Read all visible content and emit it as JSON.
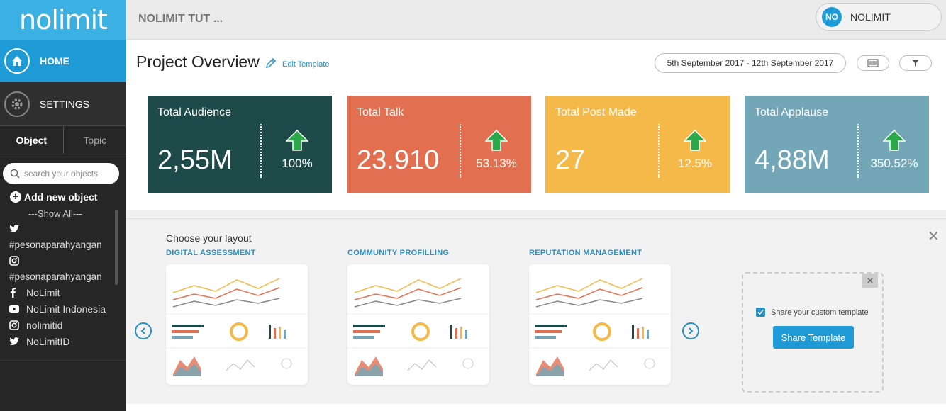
{
  "sidebar": {
    "logo": "nolimit",
    "home_label": "HOME",
    "settings_label": "SETTINGS",
    "tabs": [
      {
        "label": "Object"
      },
      {
        "label": "Topic"
      }
    ],
    "search_placeholder": "search your objects",
    "add_object_label": "Add new object",
    "show_all_label": "---Show All---",
    "objects": [
      {
        "icon": "twitter-icon",
        "label": "#pesonaparahyangan"
      },
      {
        "icon": "instagram-icon",
        "label": "#pesonaparahyangan"
      },
      {
        "icon": "facebook-icon",
        "label": "NoLimit"
      },
      {
        "icon": "youtube-icon",
        "label": "NoLimit Indonesia"
      },
      {
        "icon": "instagram-icon",
        "label": "nolimitid"
      },
      {
        "icon": "twitter-icon",
        "label": "NoLimitID"
      }
    ]
  },
  "topbar": {
    "project_name": "NOLIMIT TUT ...",
    "user_initials": "NO",
    "user_name": "NOLIMIT"
  },
  "header": {
    "title": "Project Overview",
    "edit_template_label": "Edit Template",
    "date_range": "5th September 2017 - 12th September 2017"
  },
  "stats": [
    {
      "title": "Total Audience",
      "value": "2,55M",
      "change": "100%",
      "color": "#1f4a4a"
    },
    {
      "title": "Total Talk",
      "value": "23.910",
      "change": "53.13%",
      "color": "#e27050"
    },
    {
      "title": "Total Post Made",
      "value": "27",
      "change": "12.5%",
      "color": "#f5b94a"
    },
    {
      "title": "Total Applause",
      "value": "4,88M",
      "change": "350.52%",
      "color": "#73a7b8"
    }
  ],
  "layout": {
    "choose_label": "Choose your layout",
    "templates": [
      {
        "title": "DIGITAL ASSESSMENT"
      },
      {
        "title": "COMMUNITY PROFILLING"
      },
      {
        "title": "REPUTATION MANAGEMENT"
      }
    ],
    "custom": {
      "share_checkbox_label": "Share your custom template",
      "share_button_label": "Share Template"
    }
  },
  "colors": {
    "accent": "#1e9bd7",
    "logo_bg": "#3ab0e3",
    "sidebar_bg": "#262626",
    "arrow_green": "#2aa84a"
  }
}
